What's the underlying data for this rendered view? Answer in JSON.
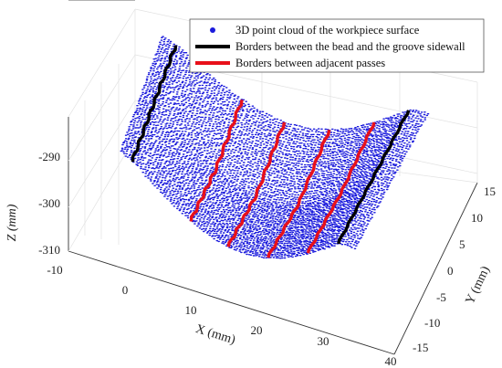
{
  "chart_data": {
    "type": "scatter",
    "subtype": "3d-point-cloud",
    "xlabel": "X (mm)",
    "ylabel": "Y (mm)",
    "zlabel": "Z (mm)",
    "xlim": [
      -10,
      40
    ],
    "ylim": [
      -15,
      15
    ],
    "zlim": [
      -310,
      -290
    ],
    "x_ticks": [
      "-10",
      "0",
      "10",
      "20",
      "30",
      "40"
    ],
    "y_ticks": [
      "-15",
      "-10",
      "-5",
      "0",
      "5",
      "10",
      "15"
    ],
    "z_ticks": [
      "-290",
      "-300",
      "-310"
    ],
    "grid": true,
    "legend_position": "top-right",
    "colors": {
      "point_cloud": "#1a1adc",
      "bead_groove_border": "#000000",
      "pass_border": "#e8101a",
      "axis": "#333333",
      "grid": "#e2e2e2"
    },
    "series": [
      {
        "name": "3D point cloud of the workpiece surface",
        "marker": "dot",
        "color": "#1a1adc"
      },
      {
        "name": "Borders between the bead and the groove sidewall",
        "marker": "line",
        "color": "#000000"
      },
      {
        "name": "Borders between adjacent passes",
        "marker": "line",
        "color": "#e8101a"
      }
    ]
  }
}
